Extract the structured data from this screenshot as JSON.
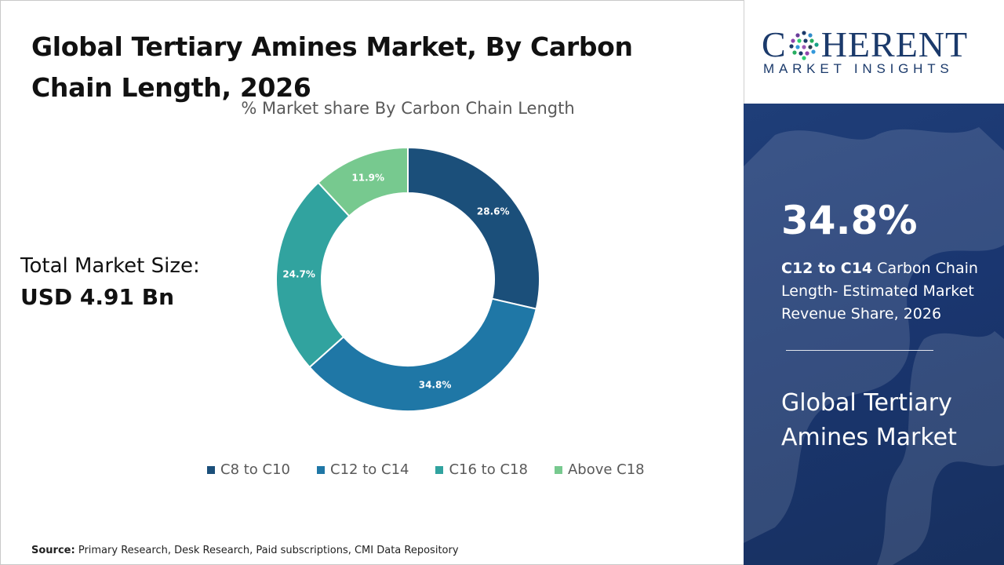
{
  "header": {
    "title": "Global Tertiary Amines Market, By Carbon Chain Length, 2026"
  },
  "total_market": {
    "label": "Total Market Size:",
    "value": "USD 4.91 Bn"
  },
  "source": {
    "label": "Source:",
    "text": "Primary Research, Desk Research, Paid subscriptions, CMI Data Repository"
  },
  "logo": {
    "word_left": "C",
    "word_right": "HERENT",
    "sub": "MARKET INSIGHTS"
  },
  "side_panel": {
    "value": "34.8%",
    "desc_bold": "C12 to C14",
    "desc_rest": " Carbon Chain Length- Estimated Market Revenue Share, 2026",
    "market_name": "Global Tertiary Amines Market"
  },
  "chart_data": {
    "type": "pie",
    "variant": "donut",
    "title": "% Market share By Carbon Chain Length",
    "categories": [
      "C8 to C10",
      "C12 to C14",
      "C16 to C18",
      "Above C18"
    ],
    "values": [
      28.6,
      34.8,
      24.7,
      11.9
    ],
    "labels": [
      "28.6%",
      "34.8%",
      "24.7%",
      "11.9%"
    ],
    "colors": [
      "#1b4f7a",
      "#1f77a6",
      "#31a39f",
      "#77c98f"
    ],
    "legend_position": "bottom"
  }
}
